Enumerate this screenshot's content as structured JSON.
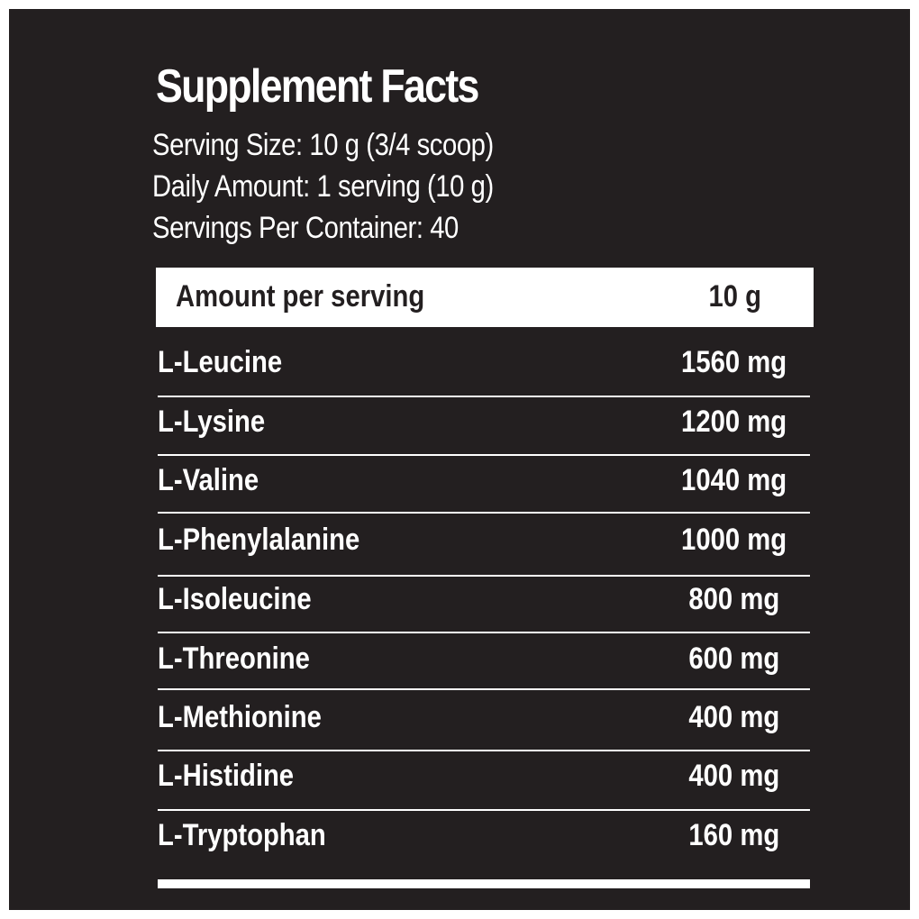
{
  "label": {
    "title": "Supplement Facts",
    "serving_size": "Serving Size: 10 g (3/4 scoop)",
    "daily_amount": "Daily Amount: 1 serving (10 g)",
    "servings_per_container": "Servings Per Container: 40",
    "header": {
      "label": "Amount per serving",
      "value": "10 g"
    },
    "ingredients": [
      {
        "name": "L-Leucine",
        "amount": "1560 mg"
      },
      {
        "name": "L-Lysine",
        "amount": "1200 mg"
      },
      {
        "name": "L-Valine",
        "amount": "1040 mg"
      },
      {
        "name": "L-Phenylalanine",
        "amount": "1000 mg"
      },
      {
        "name": "L-Isoleucine",
        "amount": "800 mg"
      },
      {
        "name": "L-Threonine",
        "amount": "600 mg"
      },
      {
        "name": "L-Methionine",
        "amount": "400 mg"
      },
      {
        "name": "L-Histidine",
        "amount": "400 mg"
      },
      {
        "name": "L-Tryptophan",
        "amount": "160 mg"
      }
    ]
  },
  "colors": {
    "background": "#231f20",
    "text": "#ffffff",
    "header_bar": "#ffffff"
  }
}
